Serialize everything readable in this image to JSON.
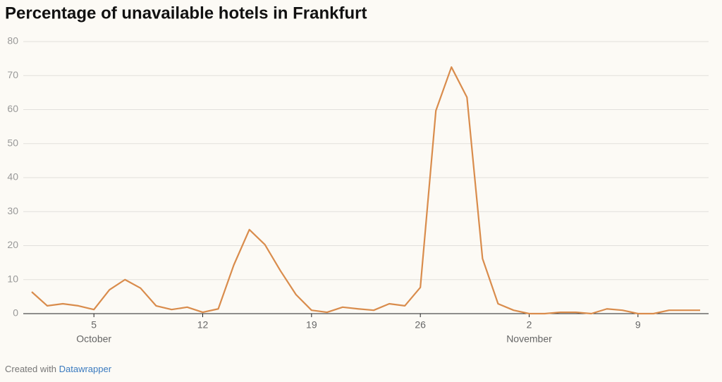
{
  "chart_data": {
    "type": "line",
    "title": "Percentage of unavailable hotels in Frankfurt",
    "x": [
      1,
      2,
      3,
      4,
      5,
      6,
      7,
      8,
      9,
      10,
      11,
      12,
      13,
      14,
      15,
      16,
      17,
      18,
      19,
      20,
      21,
      22,
      23,
      24,
      25,
      26,
      27,
      28,
      29,
      30,
      31,
      32,
      33,
      34,
      35,
      36,
      37,
      38,
      39,
      40,
      41,
      42,
      43,
      44
    ],
    "series": [
      {
        "name": "Unavailable hotels",
        "color": "#d98c4c",
        "values": [
          6.4,
          2.3,
          2.9,
          2.3,
          1.2,
          7,
          10,
          7.5,
          2.3,
          1.2,
          1.9,
          0.4,
          1.4,
          14.3,
          24.7,
          20.3,
          12.6,
          5.6,
          1,
          0.4,
          1.9,
          1.4,
          1,
          2.9,
          2.3,
          7.7,
          59.7,
          72.5,
          63.6,
          16.2,
          2.9,
          1,
          0,
          0,
          0.4,
          0.4,
          0,
          1.4,
          1,
          0,
          0,
          1,
          1,
          1
        ]
      }
    ],
    "xlim": [
      1,
      44
    ],
    "xticks": [
      5,
      12,
      19,
      26,
      {
        "value": 33,
        "label": "2"
      },
      {
        "value": 40,
        "label": "9"
      }
    ],
    "month_labels": [
      {
        "value": 5,
        "label": "October"
      },
      {
        "value": 33,
        "label": "November"
      }
    ],
    "ylim": [
      0,
      80
    ],
    "yticks": [
      0,
      10,
      20,
      30,
      40,
      50,
      60,
      70,
      80
    ],
    "grid": true,
    "credit": "Created with",
    "credit_link": "Datawrapper"
  }
}
